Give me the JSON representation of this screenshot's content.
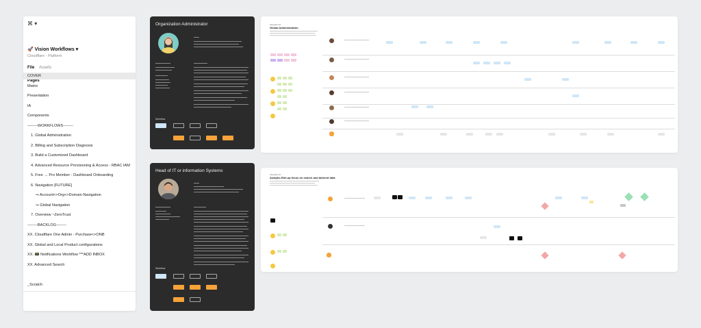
{
  "sidebar": {
    "app_menu": "⌘ ▾",
    "file_title": "🚀 Vision Workflows",
    "file_title_caret": "▾",
    "subtitle": "Cloudflare - Platform",
    "tabs": [
      "File",
      "Assets"
    ],
    "pages_heading": "Pages",
    "pages": [
      {
        "label": "COVER",
        "selected": true
      },
      {
        "label": "Matrix"
      },
      {
        "label": "Presentation"
      },
      {
        "label": "IA"
      },
      {
        "label": "Components"
      },
      {
        "label": "--------WORKFLOWS--------"
      },
      {
        "label": "1. Global Administration",
        "indent": true
      },
      {
        "label": "2. Billing and Subscription Diagnosis",
        "indent": true
      },
      {
        "label": "3. Build a Customized Dashboard",
        "indent": true
      },
      {
        "label": "4. Advanced Resource Provisioning & Access - RBAC IAM",
        "indent": true
      },
      {
        "label": "5. Free → Pro Member - Dashboard Onboarding",
        "indent": true
      },
      {
        "label": "6. Navigation [FUTURE]",
        "indent": true
      },
      {
        "label": "↪ Account<>Org<>Domain Navigation",
        "indent2": true
      },
      {
        "label": "↪ Global Navigation",
        "indent2": true
      },
      {
        "label": "7. Overview ~ZeroTrust",
        "indent": true
      },
      {
        "label": "--------BACKLOG--------"
      },
      {
        "label": "XX. Cloudflare One Admin - Purchase<>ONB"
      },
      {
        "label": "XX. Global and Local Product configurations"
      },
      {
        "label": "XX. 📟 Notifications Workflow ***ADD INBOX"
      },
      {
        "label": "XX. Advanced Search"
      }
    ],
    "scratch": "_Scratch"
  },
  "frames": {
    "persona1": {
      "title": "Organization Administrator",
      "workflow_label": "Workflow"
    },
    "persona2": {
      "title": "Head of IT or information Systems",
      "workflow_label": "Workflow"
    },
    "workflow1": {
      "section_label": "Scenario #1",
      "title": "Global Administration"
    },
    "workflow2": {
      "section_label": "Scenario #1",
      "title": "Analytic-Roll-up focus on search and tailored data"
    }
  },
  "colors": {
    "accent_orange": "#f5a33a",
    "light_blue": "#cfe6f6",
    "dark_frame": "#2b2b2b"
  }
}
